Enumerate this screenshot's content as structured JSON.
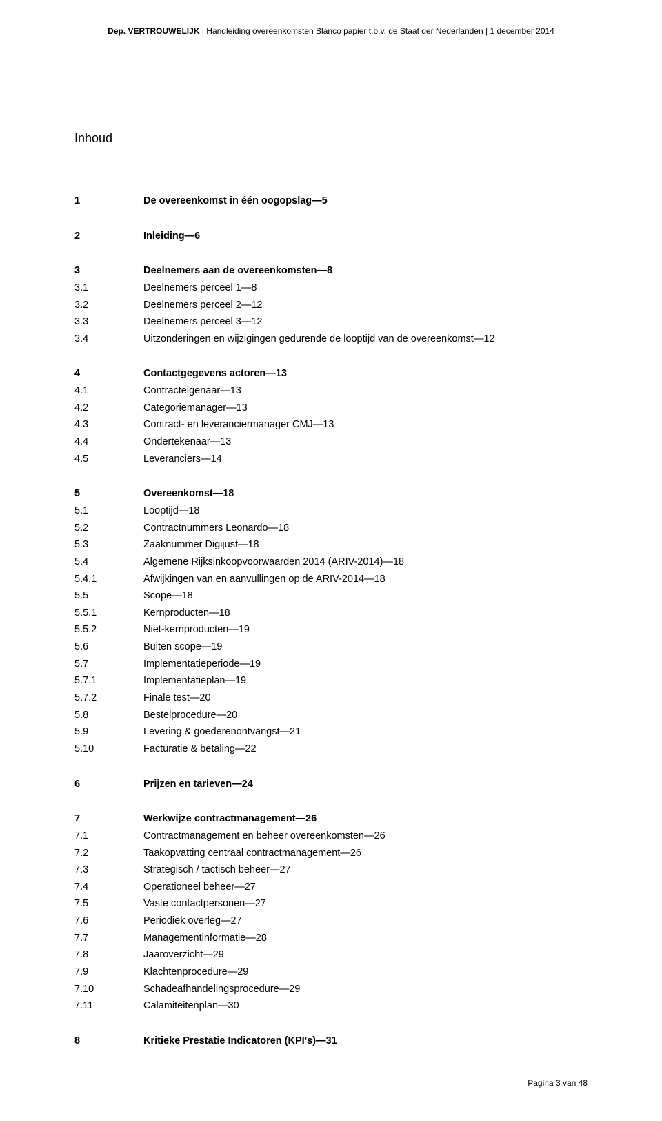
{
  "header": {
    "left_bold": "Dep. VERTROUWELIJK",
    "sep1": " | ",
    "mid": "Handleiding overeenkomsten Blanco papier t.b.v. de Staat der Nederlanden",
    "sep2": " | ",
    "date": "1 december 2014"
  },
  "title": "Inhoud",
  "toc": [
    [
      {
        "num": "1",
        "text": "De overeenkomst in één oogopslag—5",
        "bold": true
      }
    ],
    [
      {
        "num": "2",
        "text": "Inleiding—6",
        "bold": true
      }
    ],
    [
      {
        "num": "3",
        "text": "Deelnemers aan de overeenkomsten—8",
        "bold": true
      },
      {
        "num": "3.1",
        "text": "Deelnemers perceel 1—8",
        "bold": false
      },
      {
        "num": "3.2",
        "text": "Deelnemers perceel 2—12",
        "bold": false
      },
      {
        "num": "3.3",
        "text": "Deelnemers perceel 3—12",
        "bold": false
      },
      {
        "num": "3.4",
        "text": "Uitzonderingen en wijzigingen gedurende de looptijd van de overeenkomst—12",
        "bold": false
      }
    ],
    [
      {
        "num": "4",
        "text": "Contactgegevens actoren—13",
        "bold": true
      },
      {
        "num": "4.1",
        "text": "Contracteigenaar—13",
        "bold": false
      },
      {
        "num": "4.2",
        "text": "Categoriemanager—13",
        "bold": false
      },
      {
        "num": "4.3",
        "text": "Contract- en leveranciermanager CMJ—13",
        "bold": false
      },
      {
        "num": "4.4",
        "text": "Ondertekenaar—13",
        "bold": false
      },
      {
        "num": "4.5",
        "text": "Leveranciers—14",
        "bold": false
      }
    ],
    [
      {
        "num": "5",
        "text": "Overeenkomst—18",
        "bold": true
      },
      {
        "num": "5.1",
        "text": "Looptijd—18",
        "bold": false
      },
      {
        "num": "5.2",
        "text": "Contractnummers Leonardo—18",
        "bold": false
      },
      {
        "num": "5.3",
        "text": "Zaaknummer Digijust—18",
        "bold": false
      },
      {
        "num": "5.4",
        "text": "Algemene Rijksinkoopvoorwaarden 2014 (ARIV-2014)—18",
        "bold": false
      },
      {
        "num": "5.4.1",
        "text": "Afwijkingen van en aanvullingen op de ARIV-2014—18",
        "bold": false
      },
      {
        "num": "5.5",
        "text": "Scope—18",
        "bold": false
      },
      {
        "num": "5.5.1",
        "text": "Kernproducten—18",
        "bold": false
      },
      {
        "num": "5.5.2",
        "text": "Niet-kernproducten—19",
        "bold": false
      },
      {
        "num": "5.6",
        "text": "Buiten scope—19",
        "bold": false
      },
      {
        "num": "5.7",
        "text": "Implementatieperiode—19",
        "bold": false
      },
      {
        "num": "5.7.1",
        "text": "Implementatieplan—19",
        "bold": false
      },
      {
        "num": "5.7.2",
        "text": "Finale test—20",
        "bold": false
      },
      {
        "num": "5.8",
        "text": "Bestelprocedure—20",
        "bold": false
      },
      {
        "num": "5.9",
        "text": "Levering & goederenontvangst—21",
        "bold": false
      },
      {
        "num": "5.10",
        "text": "Facturatie & betaling—22",
        "bold": false
      }
    ],
    [
      {
        "num": "6",
        "text": "Prijzen en tarieven—24",
        "bold": true
      }
    ],
    [
      {
        "num": "7",
        "text": "Werkwijze contractmanagement—26",
        "bold": true
      },
      {
        "num": "7.1",
        "text": "Contractmanagement en beheer overeenkomsten—26",
        "bold": false
      },
      {
        "num": "7.2",
        "text": "Taakopvatting centraal contractmanagement—26",
        "bold": false
      },
      {
        "num": "7.3",
        "text": "Strategisch / tactisch beheer—27",
        "bold": false
      },
      {
        "num": "7.4",
        "text": "Operationeel beheer—27",
        "bold": false
      },
      {
        "num": "7.5",
        "text": "Vaste contactpersonen—27",
        "bold": false
      },
      {
        "num": "7.6",
        "text": "Periodiek overleg—27",
        "bold": false
      },
      {
        "num": "7.7",
        "text": "Managementinformatie—28",
        "bold": false
      },
      {
        "num": "7.8",
        "text": "Jaaroverzicht—29",
        "bold": false
      },
      {
        "num": "7.9",
        "text": "Klachtenprocedure—29",
        "bold": false
      },
      {
        "num": "7.10",
        "text": "Schadeafhandelingsprocedure—29",
        "bold": false
      },
      {
        "num": "7.11",
        "text": "Calamiteitenplan—30",
        "bold": false
      }
    ],
    [
      {
        "num": "8",
        "text": "Kritieke Prestatie Indicatoren (KPI's)—31",
        "bold": true
      }
    ]
  ],
  "footer": "Pagina 3 van 48"
}
